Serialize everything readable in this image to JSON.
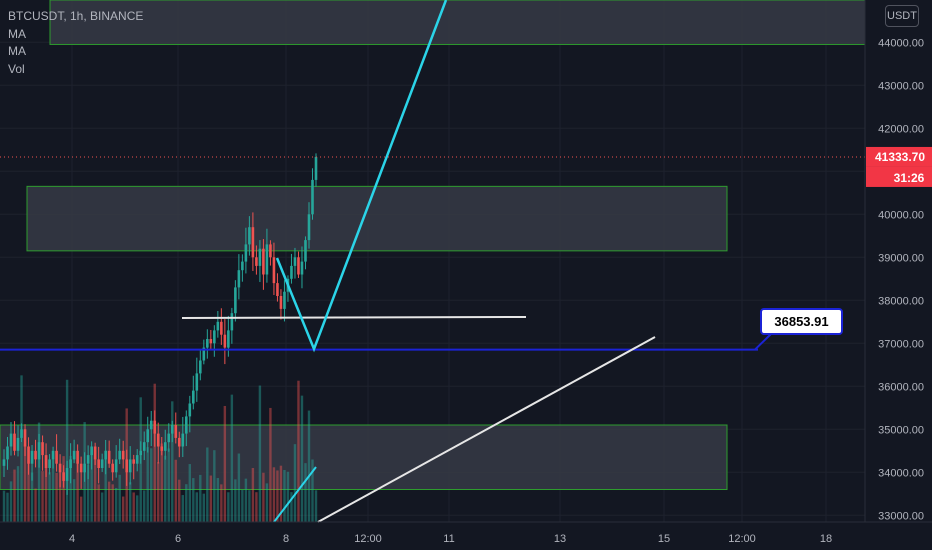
{
  "chart_title": "BTCUSDT, 1h, BINANCE",
  "legend": [
    "MA",
    "MA",
    "Vol"
  ],
  "unit_button": "USDT",
  "current_price": "41333.70",
  "countdown": "31:26",
  "price_callout": "36853.91",
  "colors": {
    "background": "#131722",
    "up": "#26a69a",
    "down": "#ef5350",
    "zone_border": "#2e9d2e",
    "zone_fill": "#363a45",
    "cyan": "#2bd4e8",
    "hline": "#1b23d6",
    "white_line": "#e6e6e6",
    "price_tag": "#f23645"
  },
  "chart_data": {
    "type": "candlestick",
    "title": "BTCUSDT, 1h, BINANCE",
    "y_ticks": [
      33000,
      34000,
      35000,
      36000,
      37000,
      38000,
      39000,
      40000,
      41000,
      42000,
      43000,
      44000
    ],
    "y_tick_labels": [
      "33000.00",
      "34000.00",
      "35000.00",
      "36000.00",
      "37000.00",
      "38000.00",
      "39000.00",
      "40000.00",
      "41000.00",
      "42000.00",
      "43000.00",
      "44000.00"
    ],
    "x_tick_labels": [
      "4",
      "6",
      "8",
      "12:00",
      "11",
      "13",
      "15",
      "12:00",
      "18"
    ],
    "zones": [
      {
        "from_price": 33600,
        "to_price": 35100
      },
      {
        "from_price": 39150,
        "to_price": 40650
      },
      {
        "from_price": 43950,
        "to_price": 45000
      }
    ],
    "horizontal_line": 36853.91,
    "current_price": 41333.7,
    "close_path": [
      34300,
      34600,
      34900,
      34500,
      34800,
      35000,
      34600,
      34200,
      34500,
      34300,
      34700,
      34400,
      34100,
      34300,
      34500,
      34200,
      34000,
      33800,
      34100,
      34300,
      34500,
      34200,
      34000,
      34200,
      34400,
      34600,
      34300,
      34100,
      34300,
      34500,
      34200,
      34000,
      34300,
      34500,
      34300,
      34000,
      34300,
      34200,
      34400,
      34500,
      34700,
      35000,
      35200,
      34900,
      34600,
      34500,
      34700,
      34900,
      35100,
      34800,
      34600,
      34900,
      35300,
      35600,
      35900,
      36300,
      36600,
      36900,
      37100,
      37000,
      37300,
      37500,
      37200,
      36900,
      37300,
      37700,
      38300,
      38700,
      38900,
      39300,
      39700,
      39000,
      38800,
      39200,
      38600,
      39300,
      39000,
      38400,
      38100,
      37800,
      38200,
      38500,
      38800,
      39000,
      38600,
      38900,
      39400,
      40000,
      40800,
      41333.7
    ]
  }
}
